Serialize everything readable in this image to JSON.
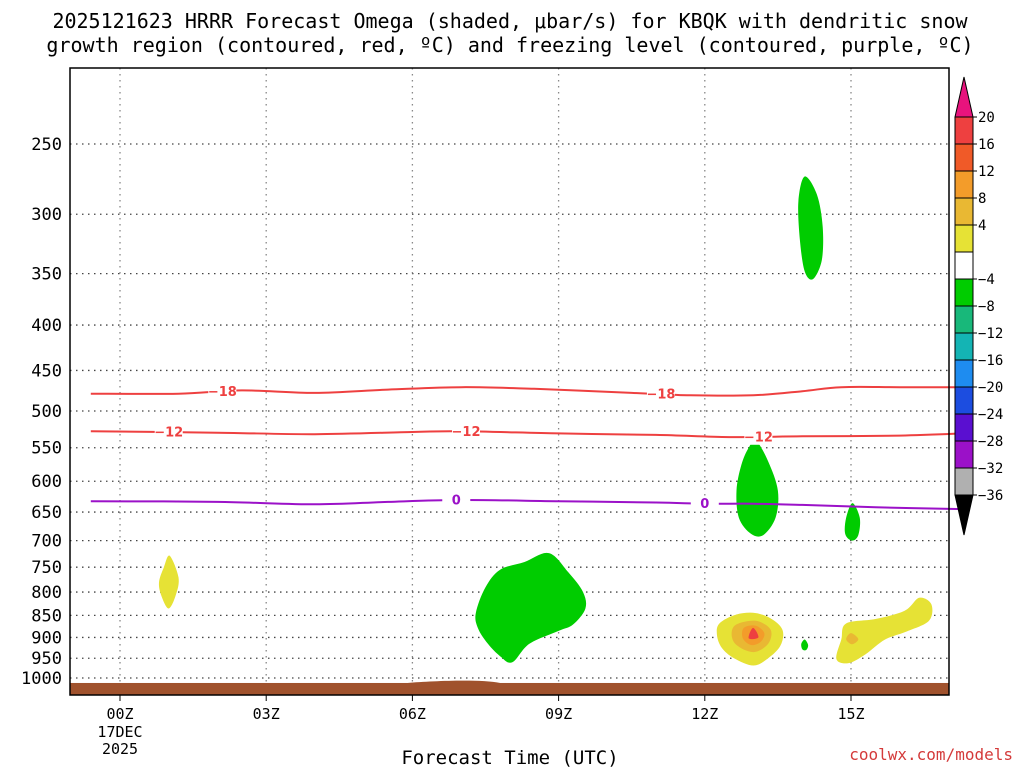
{
  "chart_data": {
    "type": "area",
    "title_lines": [
      "2025121623 HRRR Forecast Omega (shaded, μbar/s) for KBQK with dendritic snow",
      "growth region (contoured, red, ºC) and freezing level (contoured, purple, ºC)"
    ],
    "xlabel": "Forecast Time (UTC)",
    "credit": "coolwx.com/models",
    "x_ticks": [
      {
        "hour": 0,
        "label": "00Z",
        "sub": [
          "17DEC",
          "2025"
        ]
      },
      {
        "hour": 3,
        "label": "03Z"
      },
      {
        "hour": 6,
        "label": "06Z"
      },
      {
        "hour": 9,
        "label": "09Z"
      },
      {
        "hour": 12,
        "label": "12Z"
      },
      {
        "hour": 15,
        "label": "15Z"
      }
    ],
    "xlim": [
      -0.6,
      17.3
    ],
    "ylim_hpa": [
      200,
      1030
    ],
    "y_ticks": [
      250,
      300,
      350,
      400,
      450,
      500,
      550,
      600,
      650,
      700,
      750,
      800,
      850,
      900,
      950,
      1000
    ],
    "colorbar": {
      "tick_labels": [
        "20",
        "16",
        "12",
        "8",
        "4",
        "−4",
        "−8",
        "−12",
        "−16",
        "−20",
        "−24",
        "−28",
        "−32",
        "−36"
      ],
      "colors_top_to_bottom": [
        "#e8137d",
        "#ee4040",
        "#f05a28",
        "#f39c2a",
        "#e9b833",
        "#e6e235",
        "#ffffff",
        "#00cc00",
        "#18b87a",
        "#14b4b4",
        "#1e8cf0",
        "#1c4de0",
        "#5a0fd0",
        "#9b11c8",
        "#b0b0b0",
        "#000000"
      ],
      "units": "μbar/s"
    },
    "contours": [
      {
        "name": "dgz-minus18",
        "value": -18,
        "color": "#ee4040",
        "points": [
          [
            -0.6,
            478
          ],
          [
            1.2,
            478
          ],
          [
            2.5,
            474
          ],
          [
            4,
            477
          ],
          [
            5.5,
            473
          ],
          [
            7,
            470
          ],
          [
            8.5,
            472
          ],
          [
            10.5,
            477
          ],
          [
            11.7,
            480
          ],
          [
            13,
            480
          ],
          [
            14,
            475
          ],
          [
            14.8,
            470
          ],
          [
            16,
            470
          ],
          [
            17.3,
            470
          ]
        ],
        "labels": [
          {
            "hour": 2.1,
            "text": "−18"
          },
          {
            "hour": 11.1,
            "text": "−18"
          }
        ]
      },
      {
        "name": "dgz-minus12",
        "value": -12,
        "color": "#ee4040",
        "points": [
          [
            -0.6,
            527
          ],
          [
            2,
            529
          ],
          [
            4,
            531
          ],
          [
            6,
            528
          ],
          [
            7,
            527
          ],
          [
            9,
            530
          ],
          [
            11,
            532
          ],
          [
            12.5,
            535
          ],
          [
            14,
            534
          ],
          [
            16,
            533
          ],
          [
            17.3,
            530
          ]
        ],
        "labels": [
          {
            "hour": 1,
            "text": "−12"
          },
          {
            "hour": 7.1,
            "text": "−12"
          },
          {
            "hour": 13.1,
            "text": "−12"
          }
        ]
      },
      {
        "name": "freezing-level",
        "value": 0,
        "color": "#9b11c8",
        "points": [
          [
            -0.6,
            632
          ],
          [
            2,
            633
          ],
          [
            4,
            637
          ],
          [
            5.5,
            633
          ],
          [
            7,
            630
          ],
          [
            9,
            632
          ],
          [
            11,
            634
          ],
          [
            12,
            636
          ],
          [
            13,
            636
          ],
          [
            14,
            638
          ],
          [
            15.5,
            642
          ],
          [
            17.3,
            645
          ]
        ],
        "labels": [
          {
            "hour": 6.9,
            "text": "0"
          },
          {
            "hour": 12,
            "text": "0"
          }
        ]
      }
    ],
    "shaded_regions": [
      {
        "name": "ascent-core-upper",
        "value": -6,
        "color": "#00cc00",
        "points": [
          [
            14.05,
            272
          ],
          [
            14.3,
            285
          ],
          [
            14.42,
            310
          ],
          [
            14.4,
            338
          ],
          [
            14.22,
            355
          ],
          [
            14.05,
            348
          ],
          [
            13.95,
            320
          ],
          [
            13.92,
            290
          ]
        ]
      },
      {
        "name": "ascent-core-mid",
        "value": -6,
        "color": "#00cc00",
        "points": [
          [
            13.05,
            540
          ],
          [
            13.3,
            570
          ],
          [
            13.5,
            615
          ],
          [
            13.45,
            660
          ],
          [
            13.2,
            690
          ],
          [
            12.95,
            688
          ],
          [
            12.7,
            660
          ],
          [
            12.65,
            615
          ],
          [
            12.75,
            575
          ],
          [
            12.9,
            550
          ]
        ]
      },
      {
        "name": "ascent-core-small",
        "value": -6,
        "color": "#00cc00",
        "points": [
          [
            15.03,
            635
          ],
          [
            15.18,
            660
          ],
          [
            15.15,
            690
          ],
          [
            15.02,
            700
          ],
          [
            14.88,
            688
          ],
          [
            14.9,
            660
          ]
        ]
      },
      {
        "name": "ascent-core-low",
        "value": -6,
        "color": "#00cc00",
        "points": [
          [
            8.8,
            723
          ],
          [
            9.2,
            760
          ],
          [
            9.5,
            800
          ],
          [
            9.55,
            835
          ],
          [
            9.3,
            870
          ],
          [
            9,
            885
          ],
          [
            8.4,
            915
          ],
          [
            8.05,
            960
          ],
          [
            7.8,
            945
          ],
          [
            7.55,
            915
          ],
          [
            7.35,
            880
          ],
          [
            7.3,
            845
          ],
          [
            7.5,
            790
          ],
          [
            7.8,
            755
          ],
          [
            8.3,
            740
          ]
        ]
      },
      {
        "name": "ascent-speck",
        "value": -6,
        "color": "#00cc00",
        "points": [
          [
            14.05,
            905
          ],
          [
            14.12,
            918
          ],
          [
            14.08,
            930
          ],
          [
            14,
            928
          ],
          [
            13.98,
            915
          ]
        ]
      },
      {
        "name": "descent-small-left",
        "value": 6,
        "color": "#e6e235",
        "points": [
          [
            1.02,
            728
          ],
          [
            1.2,
            770
          ],
          [
            1.15,
            805
          ],
          [
            1,
            835
          ],
          [
            0.85,
            808
          ],
          [
            0.8,
            780
          ],
          [
            0.9,
            750
          ]
        ]
      },
      {
        "name": "descent-core-right",
        "value": 6,
        "color": "#e6e235",
        "points": [
          [
            12.3,
            868
          ],
          [
            12.65,
            848
          ],
          [
            13.05,
            845
          ],
          [
            13.4,
            860
          ],
          [
            13.6,
            885
          ],
          [
            13.55,
            920
          ],
          [
            13.3,
            950
          ],
          [
            13.0,
            968
          ],
          [
            12.6,
            950
          ],
          [
            12.35,
            925
          ],
          [
            12.25,
            895
          ]
        ]
      },
      {
        "name": "descent-band-far-right",
        "value": 6,
        "color": "#e6e235",
        "points": [
          [
            14.9,
            868
          ],
          [
            15.5,
            858
          ],
          [
            16.1,
            840
          ],
          [
            16.4,
            812
          ],
          [
            16.65,
            826
          ],
          [
            16.6,
            862
          ],
          [
            16.15,
            886
          ],
          [
            15.7,
            905
          ],
          [
            15.3,
            940
          ],
          [
            14.95,
            962
          ],
          [
            14.7,
            952
          ],
          [
            14.8,
            905
          ]
        ]
      },
      {
        "name": "descent-mid",
        "value": 10,
        "color": "#e9b833",
        "points": [
          [
            12.65,
            870
          ],
          [
            13.05,
            862
          ],
          [
            13.35,
            882
          ],
          [
            13.3,
            915
          ],
          [
            13.0,
            935
          ],
          [
            12.65,
            918
          ],
          [
            12.55,
            892
          ]
        ]
      },
      {
        "name": "descent-inner",
        "value": 14,
        "color": "#f39c2a",
        "points": [
          [
            12.8,
            878
          ],
          [
            13.05,
            873
          ],
          [
            13.22,
            890
          ],
          [
            13.15,
            910
          ],
          [
            12.95,
            918
          ],
          [
            12.78,
            902
          ]
        ]
      },
      {
        "name": "descent-peak",
        "value": 18,
        "color": "#ee4040",
        "points": [
          [
            12.99,
            878
          ],
          [
            13.1,
            900
          ],
          [
            12.9,
            902
          ]
        ]
      },
      {
        "name": "descent-far-right-core",
        "value": 10,
        "color": "#e9b833",
        "points": [
          [
            15.0,
            890
          ],
          [
            15.15,
            904
          ],
          [
            15.02,
            916
          ],
          [
            14.9,
            904
          ]
        ]
      }
    ],
    "terrain": {
      "name": "surface",
      "color": "#a0522d",
      "top_hpa": 1013
    }
  }
}
